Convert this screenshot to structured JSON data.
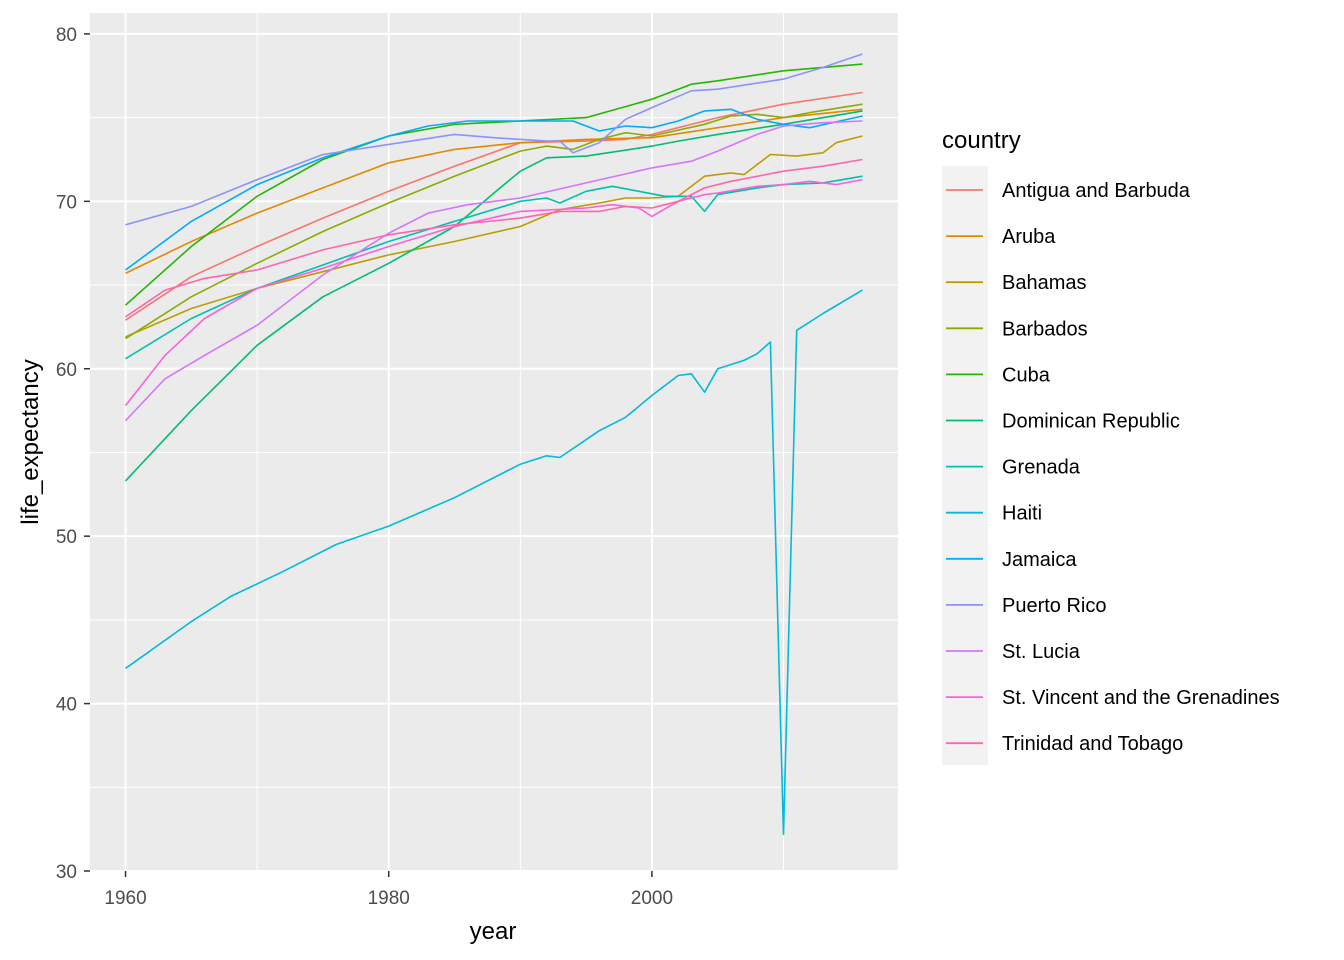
{
  "chart_data": {
    "type": "line",
    "title": "",
    "xlabel": "year",
    "ylabel": "life_expectancy",
    "xlim": [
      1957.3,
      2018.7
    ],
    "ylim": [
      30,
      81.25
    ],
    "x_ticks": [
      1960,
      1980,
      2000
    ],
    "x_tick_labels": [
      "1960",
      "1980",
      "2000"
    ],
    "x_minor_ticks": [
      1970,
      1990,
      2010
    ],
    "y_ticks": [
      30,
      40,
      50,
      60,
      70,
      80
    ],
    "y_tick_labels": [
      "30",
      "40",
      "50",
      "60",
      "70",
      "80"
    ],
    "y_minor_ticks": [
      35,
      45,
      55,
      65,
      75
    ],
    "grid": true,
    "legend": {
      "title": "country",
      "position": "right"
    },
    "series": [
      {
        "name": "Antigua and Barbuda",
        "color": "#F8766D",
        "points": [
          [
            1960,
            62.9
          ],
          [
            1965,
            65.5
          ],
          [
            1970,
            67.3
          ],
          [
            1975,
            69.0
          ],
          [
            1980,
            70.6
          ],
          [
            1985,
            72.1
          ],
          [
            1990,
            73.5
          ],
          [
            1995,
            73.6
          ],
          [
            1998,
            73.7
          ],
          [
            2000,
            74.0
          ],
          [
            2005,
            75.0
          ],
          [
            2010,
            75.8
          ],
          [
            2016,
            76.5
          ]
        ]
      },
      {
        "name": "Aruba",
        "color": "#E18A00",
        "points": [
          [
            1960,
            65.7
          ],
          [
            1965,
            67.6
          ],
          [
            1970,
            69.3
          ],
          [
            1975,
            70.8
          ],
          [
            1980,
            72.3
          ],
          [
            1985,
            73.1
          ],
          [
            1990,
            73.5
          ],
          [
            1995,
            73.7
          ],
          [
            2000,
            73.8
          ],
          [
            2005,
            74.4
          ],
          [
            2010,
            75.0
          ],
          [
            2016,
            75.5
          ]
        ]
      },
      {
        "name": "Bahamas",
        "color": "#BE9C00",
        "points": [
          [
            1960,
            61.9
          ],
          [
            1965,
            63.6
          ],
          [
            1970,
            64.8
          ],
          [
            1975,
            65.8
          ],
          [
            1980,
            66.8
          ],
          [
            1985,
            67.6
          ],
          [
            1990,
            68.5
          ],
          [
            1993,
            69.5
          ],
          [
            1996,
            69.9
          ],
          [
            1998,
            70.2
          ],
          [
            2000,
            70.2
          ],
          [
            2002,
            70.3
          ],
          [
            2004,
            71.5
          ],
          [
            2006,
            71.7
          ],
          [
            2007,
            71.6
          ],
          [
            2008,
            72.2
          ],
          [
            2009,
            72.8
          ],
          [
            2011,
            72.7
          ],
          [
            2013,
            72.9
          ],
          [
            2014,
            73.5
          ],
          [
            2016,
            73.9
          ]
        ]
      },
      {
        "name": "Barbados",
        "color": "#8CAB00",
        "points": [
          [
            1960,
            61.8
          ],
          [
            1965,
            64.3
          ],
          [
            1970,
            66.3
          ],
          [
            1975,
            68.2
          ],
          [
            1980,
            69.9
          ],
          [
            1985,
            71.5
          ],
          [
            1990,
            73.0
          ],
          [
            1992,
            73.3
          ],
          [
            1994,
            73.1
          ],
          [
            1996,
            73.7
          ],
          [
            1998,
            74.1
          ],
          [
            2000,
            73.9
          ],
          [
            2004,
            74.6
          ],
          [
            2006,
            75.1
          ],
          [
            2008,
            75.2
          ],
          [
            2010,
            75.0
          ],
          [
            2012,
            75.3
          ],
          [
            2016,
            75.8
          ]
        ]
      },
      {
        "name": "Cuba",
        "color": "#24B700",
        "points": [
          [
            1960,
            63.8
          ],
          [
            1965,
            67.3
          ],
          [
            1970,
            70.3
          ],
          [
            1975,
            72.5
          ],
          [
            1980,
            73.9
          ],
          [
            1985,
            74.6
          ],
          [
            1990,
            74.8
          ],
          [
            1995,
            75.0
          ],
          [
            2000,
            76.1
          ],
          [
            2003,
            77.0
          ],
          [
            2005,
            77.2
          ],
          [
            2010,
            77.8
          ],
          [
            2016,
            78.2
          ]
        ]
      },
      {
        "name": "Dominican Republic",
        "color": "#00BE70",
        "points": [
          [
            1960,
            53.3
          ],
          [
            1965,
            57.5
          ],
          [
            1970,
            61.4
          ],
          [
            1975,
            64.3
          ],
          [
            1980,
            66.3
          ],
          [
            1985,
            68.5
          ],
          [
            1988,
            70.5
          ],
          [
            1990,
            71.8
          ],
          [
            1992,
            72.6
          ],
          [
            1995,
            72.7
          ],
          [
            2000,
            73.3
          ],
          [
            2002,
            73.6
          ],
          [
            2005,
            74.0
          ],
          [
            2010,
            74.6
          ],
          [
            2016,
            75.4
          ]
        ]
      },
      {
        "name": "Grenada",
        "color": "#00C1AB",
        "points": [
          [
            1960,
            60.6
          ],
          [
            1965,
            63.0
          ],
          [
            1970,
            64.8
          ],
          [
            1975,
            66.2
          ],
          [
            1980,
            67.6
          ],
          [
            1985,
            68.8
          ],
          [
            1990,
            70.0
          ],
          [
            1992,
            70.2
          ],
          [
            1993,
            69.9
          ],
          [
            1995,
            70.6
          ],
          [
            1997,
            70.9
          ],
          [
            1999,
            70.6
          ],
          [
            2001,
            70.3
          ],
          [
            2003,
            70.3
          ],
          [
            2004,
            69.4
          ],
          [
            2005,
            70.4
          ],
          [
            2008,
            70.8
          ],
          [
            2010,
            71.0
          ],
          [
            2013,
            71.1
          ],
          [
            2016,
            71.5
          ]
        ]
      },
      {
        "name": "Haiti",
        "color": "#00BBDA",
        "points": [
          [
            1960,
            42.1
          ],
          [
            1965,
            44.9
          ],
          [
            1968,
            46.4
          ],
          [
            1972,
            47.9
          ],
          [
            1976,
            49.5
          ],
          [
            1980,
            50.6
          ],
          [
            1985,
            52.3
          ],
          [
            1990,
            54.3
          ],
          [
            1992,
            54.8
          ],
          [
            1993,
            54.7
          ],
          [
            1996,
            56.3
          ],
          [
            1998,
            57.1
          ],
          [
            2000,
            58.4
          ],
          [
            2002,
            59.6
          ],
          [
            2003,
            59.7
          ],
          [
            2004,
            58.6
          ],
          [
            2005,
            60.0
          ],
          [
            2007,
            60.5
          ],
          [
            2008,
            60.9
          ],
          [
            2009,
            61.6
          ],
          [
            2010,
            32.2
          ],
          [
            2011,
            62.3
          ],
          [
            2013,
            63.3
          ],
          [
            2016,
            64.7
          ]
        ]
      },
      {
        "name": "Jamaica",
        "color": "#00ACFC",
        "points": [
          [
            1960,
            65.9
          ],
          [
            1965,
            68.8
          ],
          [
            1970,
            71.0
          ],
          [
            1975,
            72.6
          ],
          [
            1980,
            73.9
          ],
          [
            1983,
            74.5
          ],
          [
            1986,
            74.8
          ],
          [
            1990,
            74.8
          ],
          [
            1994,
            74.8
          ],
          [
            1996,
            74.2
          ],
          [
            1998,
            74.5
          ],
          [
            2000,
            74.4
          ],
          [
            2002,
            74.8
          ],
          [
            2004,
            75.4
          ],
          [
            2006,
            75.5
          ],
          [
            2008,
            74.9
          ],
          [
            2010,
            74.6
          ],
          [
            2012,
            74.4
          ],
          [
            2016,
            75.1
          ]
        ]
      },
      {
        "name": "Puerto Rico",
        "color": "#8B93FF",
        "points": [
          [
            1960,
            68.6
          ],
          [
            1965,
            69.7
          ],
          [
            1970,
            71.3
          ],
          [
            1975,
            72.8
          ],
          [
            1980,
            73.4
          ],
          [
            1985,
            74.0
          ],
          [
            1988,
            73.8
          ],
          [
            1992,
            73.6
          ],
          [
            1993,
            73.6
          ],
          [
            1994,
            72.9
          ],
          [
            1996,
            73.5
          ],
          [
            1997,
            74.2
          ],
          [
            1998,
            74.9
          ],
          [
            2000,
            75.6
          ],
          [
            2003,
            76.6
          ],
          [
            2005,
            76.7
          ],
          [
            2010,
            77.3
          ],
          [
            2013,
            78.0
          ],
          [
            2016,
            78.8
          ]
        ]
      },
      {
        "name": "St. Lucia",
        "color": "#D575FE",
        "points": [
          [
            1960,
            56.9
          ],
          [
            1963,
            59.4
          ],
          [
            1966,
            60.8
          ],
          [
            1970,
            62.6
          ],
          [
            1975,
            65.6
          ],
          [
            1980,
            68.1
          ],
          [
            1983,
            69.3
          ],
          [
            1986,
            69.8
          ],
          [
            1990,
            70.2
          ],
          [
            1995,
            71.1
          ],
          [
            2000,
            72.0
          ],
          [
            2003,
            72.4
          ],
          [
            2005,
            73.0
          ],
          [
            2008,
            74.0
          ],
          [
            2010,
            74.5
          ],
          [
            2013,
            74.7
          ],
          [
            2016,
            74.8
          ]
        ]
      },
      {
        "name": "St. Vincent and the Grenadines",
        "color": "#F962DD",
        "points": [
          [
            1960,
            57.8
          ],
          [
            1963,
            60.8
          ],
          [
            1966,
            63.0
          ],
          [
            1970,
            64.8
          ],
          [
            1975,
            66.0
          ],
          [
            1980,
            67.3
          ],
          [
            1985,
            68.5
          ],
          [
            1990,
            69.4
          ],
          [
            1995,
            69.6
          ],
          [
            1997,
            69.8
          ],
          [
            1999,
            69.6
          ],
          [
            2000,
            69.1
          ],
          [
            2002,
            70.0
          ],
          [
            2004,
            70.4
          ],
          [
            2005,
            70.5
          ],
          [
            2008,
            70.9
          ],
          [
            2010,
            71.0
          ],
          [
            2012,
            71.2
          ],
          [
            2014,
            71.0
          ],
          [
            2016,
            71.3
          ]
        ]
      },
      {
        "name": "Trinidad and Tobago",
        "color": "#FF65AC",
        "points": [
          [
            1960,
            63.1
          ],
          [
            1963,
            64.7
          ],
          [
            1966,
            65.4
          ],
          [
            1970,
            65.9
          ],
          [
            1975,
            67.1
          ],
          [
            1980,
            68.0
          ],
          [
            1985,
            68.6
          ],
          [
            1990,
            69.0
          ],
          [
            1993,
            69.4
          ],
          [
            1996,
            69.4
          ],
          [
            1998,
            69.7
          ],
          [
            2000,
            69.6
          ],
          [
            2002,
            70.0
          ],
          [
            2003,
            70.4
          ],
          [
            2004,
            70.8
          ],
          [
            2006,
            71.2
          ],
          [
            2010,
            71.8
          ],
          [
            2013,
            72.1
          ],
          [
            2016,
            72.5
          ]
        ]
      }
    ]
  }
}
